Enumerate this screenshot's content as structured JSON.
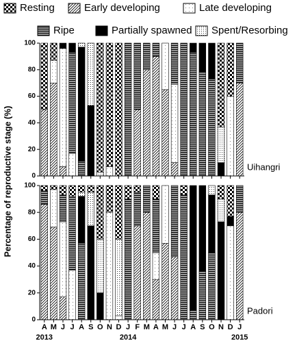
{
  "chart_data": [
    {
      "type": "bar",
      "stacked": true,
      "panel_label": "Uihangri",
      "ylabel": "Percentage of reproductive stage (%)",
      "ylim": [
        0,
        100
      ],
      "yticks": [
        0,
        20,
        40,
        60,
        80,
        100
      ],
      "series": [
        {
          "name": "Resting",
          "pattern": "checker",
          "color": "#000000",
          "values": [
            50,
            13,
            0,
            0,
            0,
            0,
            97,
            93,
            100,
            0,
            0,
            0,
            0,
            0,
            0,
            0,
            0,
            0,
            0,
            63,
            40,
            0
          ]
        },
        {
          "name": "Early developing",
          "pattern": "hatch",
          "color": "#000000",
          "values": [
            50,
            70,
            7,
            0,
            0,
            0,
            0,
            0,
            0,
            0,
            50,
            80,
            90,
            65,
            10,
            0,
            0,
            0,
            0,
            0,
            0,
            70
          ]
        },
        {
          "name": "Late developing",
          "pattern": "dots",
          "color": "#000000",
          "values": [
            0,
            17,
            89,
            17,
            0,
            0,
            0,
            7,
            0,
            0,
            0,
            0,
            0,
            35,
            59,
            0,
            0,
            0,
            0,
            0,
            60,
            0
          ]
        },
        {
          "name": "Ripe",
          "pattern": "hlines",
          "color": "#000000",
          "values": [
            0,
            0,
            0,
            76,
            11,
            0,
            0,
            0,
            0,
            100,
            50,
            20,
            10,
            0,
            31,
            100,
            93,
            78,
            73,
            0,
            0,
            30
          ]
        },
        {
          "name": "Partially spawned",
          "pattern": "solid",
          "color": "#000000",
          "values": [
            0,
            0,
            4,
            7,
            86,
            53,
            0,
            0,
            0,
            0,
            0,
            0,
            0,
            0,
            0,
            0,
            7,
            22,
            27,
            10,
            0,
            0
          ]
        },
        {
          "name": "Spent/Resorbing",
          "pattern": "finedots",
          "color": "#000000",
          "values": [
            0,
            0,
            0,
            0,
            3,
            47,
            3,
            0,
            0,
            0,
            0,
            0,
            0,
            0,
            0,
            0,
            0,
            0,
            0,
            27,
            0,
            0
          ]
        }
      ]
    },
    {
      "type": "bar",
      "stacked": true,
      "panel_label": "Padori",
      "categories": [
        "A",
        "M",
        "J",
        "J",
        "A",
        "S",
        "O",
        "N",
        "D",
        "J",
        "F",
        "M",
        "A",
        "M",
        "J",
        "J",
        "A",
        "S",
        "O",
        "N",
        "D",
        "J"
      ],
      "years": [
        "2013",
        null,
        null,
        null,
        null,
        null,
        null,
        null,
        null,
        "2014",
        null,
        null,
        null,
        null,
        null,
        null,
        null,
        null,
        null,
        null,
        null,
        "2015"
      ],
      "ylim": [
        0,
        100
      ],
      "yticks": [
        0,
        20,
        40,
        60,
        80,
        100
      ],
      "series": [
        {
          "pattern": "checker",
          "color": "#000000",
          "values": [
            4,
            3,
            7,
            8,
            5,
            5,
            40,
            20,
            40,
            10,
            5,
            0,
            10,
            0,
            0,
            7,
            0,
            0,
            0,
            10,
            23,
            0
          ]
        },
        {
          "pattern": "hatch",
          "color": "#000000",
          "values": [
            86,
            69,
            17,
            0,
            0,
            0,
            0,
            0,
            0,
            0,
            70,
            80,
            30,
            57,
            47,
            0,
            0,
            0,
            0,
            0,
            0,
            80
          ]
        },
        {
          "pattern": "dots",
          "color": "#000000",
          "values": [
            0,
            28,
            56,
            37,
            0,
            0,
            0,
            80,
            3,
            0,
            0,
            0,
            20,
            43,
            0,
            0,
            0,
            0,
            0,
            0,
            70,
            0
          ]
        },
        {
          "pattern": "hlines",
          "color": "#000000",
          "values": [
            10,
            0,
            20,
            55,
            57,
            0,
            0,
            0,
            0,
            90,
            25,
            20,
            40,
            0,
            53,
            93,
            7,
            36,
            50,
            0,
            0,
            20
          ]
        },
        {
          "pattern": "solid",
          "color": "#000000",
          "values": [
            0,
            0,
            0,
            0,
            35,
            70,
            20,
            0,
            0,
            0,
            0,
            0,
            0,
            0,
            0,
            0,
            93,
            64,
            43,
            73,
            7,
            0
          ]
        },
        {
          "pattern": "finedots",
          "color": "#000000",
          "values": [
            0,
            0,
            0,
            0,
            3,
            25,
            40,
            0,
            57,
            0,
            0,
            0,
            0,
            0,
            0,
            0,
            0,
            0,
            7,
            17,
            0,
            0
          ]
        }
      ]
    }
  ]
}
